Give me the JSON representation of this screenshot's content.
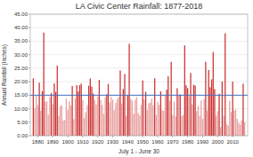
{
  "chart_data": {
    "type": "bar",
    "title": "LA Civic Center Rainfall: 1877-2018",
    "xlabel": "July 1 - June 30",
    "ylabel": "Annual Rainfall (Inches)",
    "x": [
      1877,
      1878,
      1879,
      1880,
      1881,
      1882,
      1883,
      1884,
      1885,
      1886,
      1887,
      1888,
      1889,
      1890,
      1891,
      1892,
      1893,
      1894,
      1895,
      1896,
      1897,
      1898,
      1899,
      1900,
      1901,
      1902,
      1903,
      1904,
      1905,
      1906,
      1907,
      1908,
      1909,
      1910,
      1911,
      1912,
      1913,
      1914,
      1915,
      1916,
      1917,
      1918,
      1919,
      1920,
      1921,
      1922,
      1923,
      1924,
      1925,
      1926,
      1927,
      1928,
      1929,
      1930,
      1931,
      1932,
      1933,
      1934,
      1935,
      1936,
      1937,
      1938,
      1939,
      1940,
      1941,
      1942,
      1943,
      1944,
      1945,
      1946,
      1947,
      1948,
      1949,
      1950,
      1951,
      1952,
      1953,
      1954,
      1955,
      1956,
      1957,
      1958,
      1959,
      1960,
      1961,
      1962,
      1963,
      1964,
      1965,
      1966,
      1967,
      1968,
      1969,
      1970,
      1971,
      1972,
      1973,
      1974,
      1975,
      1976,
      1977,
      1978,
      1979,
      1980,
      1981,
      1982,
      1983,
      1984,
      1985,
      1986,
      1987,
      1988,
      1989,
      1990,
      1991,
      1992,
      1993,
      1994,
      1995,
      1996,
      1997,
      1998,
      1999,
      2000,
      2001,
      2002,
      2003,
      2004,
      2005,
      2006,
      2007,
      2008,
      2009,
      2010,
      2011,
      2012,
      2013,
      2014,
      2015,
      2016,
      2017,
      2018
    ],
    "values": [
      21.26,
      10.23,
      14.97,
      11.35,
      19.66,
      9.27,
      16.5,
      38.18,
      12.56,
      12.76,
      7.78,
      14.26,
      15.83,
      11.68,
      19.35,
      16.19,
      25.95,
      7.4,
      10.88,
      11.3,
      5.65,
      5.8,
      13.79,
      9.58,
      12.75,
      11.3,
      18.44,
      6.14,
      13.83,
      18.73,
      16.35,
      18.75,
      19.32,
      13.08,
      6.59,
      8.75,
      11.35,
      18.49,
      21.19,
      18.16,
      15.6,
      13.18,
      11.57,
      14.48,
      20.68,
      13.28,
      11.46,
      8.09,
      14.19,
      15.35,
      19.18,
      12.36,
      14.36,
      13.43,
      9.51,
      12.08,
      13.57,
      14.26,
      24.19,
      11.94,
      17.25,
      22.83,
      7.37,
      15.12,
      34.04,
      13.69,
      13.01,
      8.13,
      13.38,
      14.35,
      8.45,
      7.49,
      11.42,
      20.44,
      13.51,
      16.24,
      9.45,
      11.99,
      12.32,
      13.72,
      11.26,
      21.26,
      7.7,
      12.57,
      11.36,
      16.43,
      9.49,
      9.2,
      14.92,
      17.04,
      22.0,
      12.96,
      27.36,
      7.74,
      12.58,
      7.22,
      17.58,
      14.89,
      15.27,
      7.22,
      7.66,
      33.44,
      18.64,
      17.6,
      14.62,
      23.26,
      11.55,
      18.88,
      18.61,
      9.09,
      11.05,
      7.35,
      13.07,
      6.24,
      13.51,
      27.38,
      9.41,
      24.35,
      17.96,
      20.88,
      31.01,
      17.26,
      7.45,
      9.09,
      15.52,
      3.21,
      20.07,
      7.44,
      37.96,
      4.42,
      3.76,
      12.96,
      8.78,
      20.03,
      9.35,
      9.71,
      6.26,
      4.79,
      4.08,
      5.7,
      19.26,
      4.98
    ],
    "colors": [
      "#cc3333",
      "#e8a0a0",
      "#e8a0a0",
      "#e8a0a0",
      "#cc3333",
      "#e8a0a0",
      "#cc3333",
      "#cc3333",
      "#e8a0a0",
      "#e8a0a0",
      "#e8a0a0",
      "#e8a0a0",
      "#cc3333",
      "#e8a0a0",
      "#cc3333",
      "#cc3333",
      "#cc3333",
      "#e8a0a0",
      "#e8a0a0",
      "#e8a0a0",
      "#e8a0a0",
      "#e8a0a0",
      "#e8a0a0",
      "#e8a0a0",
      "#e8a0a0",
      "#e8a0a0",
      "#cc3333",
      "#e8a0a0",
      "#e8a0a0",
      "#cc3333",
      "#cc3333",
      "#cc3333",
      "#cc3333",
      "#e8a0a0",
      "#e8a0a0",
      "#e8a0a0",
      "#e8a0a0",
      "#cc3333",
      "#cc3333",
      "#cc3333",
      "#cc3333",
      "#e8a0a0",
      "#e8a0a0",
      "#e8a0a0",
      "#cc3333",
      "#e8a0a0",
      "#e8a0a0",
      "#e8a0a0",
      "#e8a0a0",
      "#cc3333",
      "#cc3333",
      "#e8a0a0",
      "#e8a0a0",
      "#e8a0a0",
      "#e8a0a0",
      "#e8a0a0",
      "#e8a0a0",
      "#e8a0a0",
      "#cc3333",
      "#e8a0a0",
      "#cc3333",
      "#cc3333",
      "#e8a0a0",
      "#cc3333",
      "#cc3333",
      "#e8a0a0",
      "#e8a0a0",
      "#e8a0a0",
      "#e8a0a0",
      "#e8a0a0",
      "#e8a0a0",
      "#e8a0a0",
      "#e8a0a0",
      "#cc3333",
      "#e8a0a0",
      "#cc3333",
      "#e8a0a0",
      "#e8a0a0",
      "#e8a0a0",
      "#e8a0a0",
      "#e8a0a0",
      "#cc3333",
      "#e8a0a0",
      "#e8a0a0",
      "#e8a0a0",
      "#cc3333",
      "#e8a0a0",
      "#e8a0a0",
      "#e8a0a0",
      "#cc3333",
      "#cc3333",
      "#e8a0a0",
      "#cc3333",
      "#e8a0a0",
      "#e8a0a0",
      "#e8a0a0",
      "#cc3333",
      "#e8a0a0",
      "#cc3333",
      "#e8a0a0",
      "#e8a0a0",
      "#cc3333",
      "#cc3333",
      "#cc3333",
      "#e8a0a0",
      "#cc3333",
      "#e8a0a0",
      "#cc3333",
      "#cc3333",
      "#e8a0a0",
      "#e8a0a0",
      "#e8a0a0",
      "#e8a0a0",
      "#e8a0a0",
      "#e8a0a0",
      "#cc3333",
      "#e8a0a0",
      "#cc3333",
      "#cc3333",
      "#cc3333",
      "#cc3333",
      "#cc3333",
      "#e8a0a0",
      "#e8a0a0",
      "#cc3333",
      "#e8a0a0",
      "#cc3333",
      "#e8a0a0",
      "#cc3333",
      "#e8a0a0",
      "#e8a0a0",
      "#e8a0a0",
      "#e8a0a0",
      "#cc3333",
      "#e8a0a0",
      "#e8a0a0",
      "#e8a0a0",
      "#e8a0a0",
      "#e8a0a0",
      "#e8a0a0",
      "#cc3333",
      "#e8a0a0"
    ],
    "average": 15.0,
    "xlim": [
      1875,
      2020
    ],
    "ylim": [
      0,
      45
    ],
    "xticks": [
      1880,
      1890,
      1900,
      1910,
      1920,
      1930,
      1940,
      1950,
      1960,
      1970,
      1980,
      1990,
      2000,
      2010
    ],
    "yticks": [
      {
        "value": 0,
        "label": "0.00"
      },
      {
        "value": 5,
        "label": "5.00"
      },
      {
        "value": 10,
        "label": "10.00"
      },
      {
        "value": 15,
        "label": "15.00"
      },
      {
        "value": 20,
        "label": "20.00"
      },
      {
        "value": 25,
        "label": "25.00"
      },
      {
        "value": 30,
        "label": "30.00"
      },
      {
        "value": 35,
        "label": "35.00"
      },
      {
        "value": 40,
        "label": "40.00"
      },
      {
        "value": 45,
        "label": "45.00"
      }
    ],
    "grid": true
  }
}
